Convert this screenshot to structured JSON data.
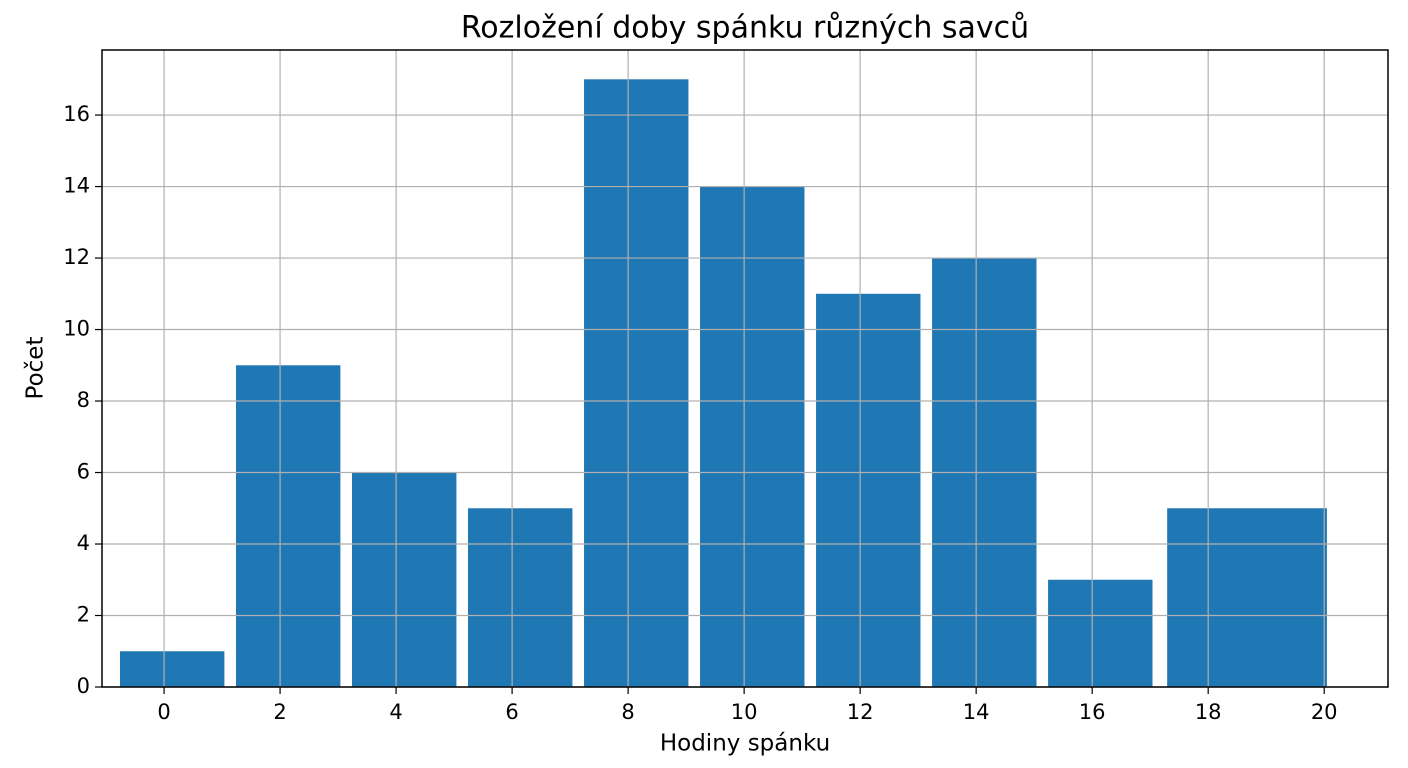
{
  "chart_data": {
    "type": "histogram",
    "title": "Rozložení doby spánku různých savců",
    "x_label": "Hodiny spánku",
    "y_label": "Počet",
    "bins": [
      -0.86,
      1.14,
      3.14,
      5.14,
      7.14,
      9.14,
      11.14,
      13.14,
      15.14,
      17.14,
      20.2
    ],
    "values": [
      1,
      9,
      6,
      5,
      17,
      14,
      11,
      12,
      3,
      5
    ],
    "color": "#1f77b4",
    "xlim": [
      -1.07,
      21.1
    ],
    "xticks": [
      0,
      2,
      4,
      6,
      8,
      10,
      12,
      14,
      16,
      18,
      20
    ],
    "ylim": [
      0,
      17.82
    ],
    "yticks": [
      0,
      2,
      4,
      6,
      8,
      10,
      12,
      14,
      16
    ],
    "grid": true
  }
}
